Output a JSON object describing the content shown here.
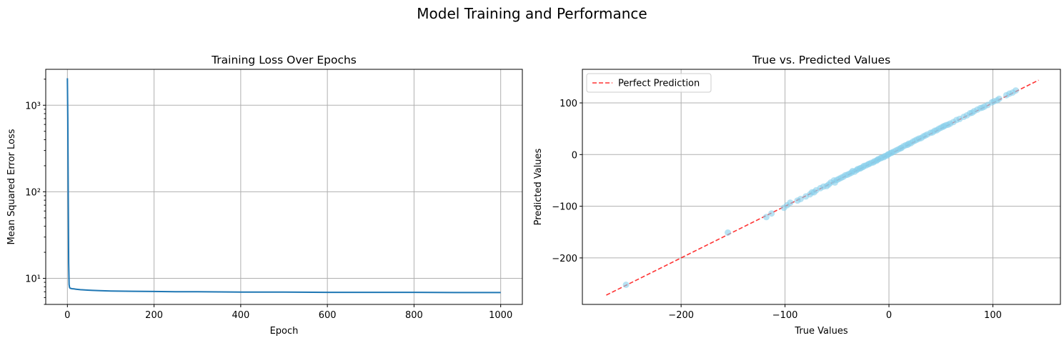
{
  "figure": {
    "suptitle": "Model Training and Performance"
  },
  "chart_data": [
    {
      "type": "line",
      "title": "Training Loss Over Epochs",
      "xlabel": "Epoch",
      "ylabel": "Mean Squared Error Loss",
      "yscale": "log",
      "xlim": [
        -50,
        1050
      ],
      "ylim": [
        5,
        2600
      ],
      "xticks": [
        0,
        200,
        400,
        600,
        800,
        1000
      ],
      "xtick_labels": [
        "0",
        "200",
        "400",
        "600",
        "800",
        "1000"
      ],
      "yticks": [
        10,
        100,
        1000
      ],
      "ytick_labels": [
        "10¹",
        "10²",
        "10³"
      ],
      "grid": true,
      "series": [
        {
          "color": "#1f77b4",
          "x": [
            0,
            1,
            2,
            3,
            4,
            5,
            6,
            8,
            10,
            15,
            20,
            30,
            50,
            75,
            100,
            150,
            200,
            250,
            300,
            400,
            500,
            600,
            700,
            800,
            900,
            1000
          ],
          "y": [
            2050,
            700,
            90,
            15,
            8.5,
            7.9,
            7.7,
            7.65,
            7.6,
            7.55,
            7.5,
            7.4,
            7.3,
            7.2,
            7.15,
            7.1,
            7.05,
            7.0,
            7.0,
            6.95,
            6.95,
            6.9,
            6.9,
            6.9,
            6.85,
            6.85
          ]
        }
      ]
    },
    {
      "type": "scatter",
      "title": "True vs. Predicted Values",
      "xlabel": "True Values",
      "ylabel": "Predicted Values",
      "xlim": [
        -295,
        165
      ],
      "ylim": [
        -290,
        165
      ],
      "xticks": [
        -200,
        -100,
        0,
        100
      ],
      "xtick_labels": [
        "−200",
        "−100",
        "0",
        "100"
      ],
      "yticks": [
        -200,
        -100,
        0,
        100
      ],
      "ytick_labels": [
        "−200",
        "−100",
        "0",
        "100"
      ],
      "grid": true,
      "legend": {
        "placement": "upper-left",
        "entries": [
          "Perfect Prediction"
        ]
      },
      "reference_line": {
        "label": "Perfect Prediction",
        "color": "#ff0000",
        "style": "dashed",
        "x": [
          -272,
          144
        ],
        "y": [
          -272,
          144
        ]
      },
      "points": {
        "color": "#87ceeb",
        "x": [
          -253,
          -155,
          -118,
          -113,
          -101,
          -98,
          -95,
          -88,
          -85,
          -80,
          -76,
          -74,
          -72,
          -70,
          -66,
          -63,
          -60,
          -58,
          -56,
          -53,
          -52,
          -50,
          -48,
          -46,
          -44,
          -42,
          -40,
          -38,
          -36,
          -35,
          -33,
          -31,
          -30,
          -28,
          -27,
          -25,
          -24,
          -22,
          -20,
          -19,
          -17,
          -15,
          -14,
          -12,
          -11,
          -10,
          -8,
          -7,
          -5,
          -4,
          -2,
          -1,
          0,
          2,
          3,
          5,
          7,
          9,
          11,
          12,
          14,
          16,
          18,
          19,
          21,
          23,
          25,
          27,
          29,
          31,
          33,
          35,
          37,
          40,
          42,
          44,
          46,
          48,
          50,
          52,
          53,
          55,
          57,
          59,
          62,
          65,
          68,
          72,
          75,
          78,
          80,
          82,
          85,
          88,
          90,
          92,
          95,
          99,
          101,
          104,
          106,
          113,
          116,
          119,
          122
        ],
        "y": [
          -252,
          -151,
          -121,
          -114,
          -103,
          -98,
          -93,
          -89,
          -86,
          -81,
          -77,
          -73,
          -73,
          -69,
          -65,
          -62,
          -61,
          -58,
          -54,
          -50,
          -54,
          -49,
          -47,
          -45,
          -43,
          -40,
          -39,
          -37,
          -35,
          -32,
          -33,
          -30,
          -28,
          -27,
          -26,
          -24,
          -22,
          -21,
          -19,
          -18,
          -16,
          -15,
          -13,
          -12,
          -10,
          -9,
          -7,
          -6,
          -5,
          -3,
          -2,
          0,
          1,
          3,
          4,
          6,
          8,
          10,
          12,
          13,
          16,
          18,
          19,
          21,
          22,
          25,
          27,
          29,
          31,
          32,
          35,
          37,
          39,
          42,
          43,
          46,
          47,
          50,
          52,
          54,
          55,
          57,
          58,
          60,
          63,
          67,
          69,
          73,
          76,
          80,
          81,
          84,
          87,
          90,
          91,
          93,
          96,
          101,
          103,
          105,
          108,
          115,
          118,
          120,
          124
        ]
      }
    }
  ]
}
